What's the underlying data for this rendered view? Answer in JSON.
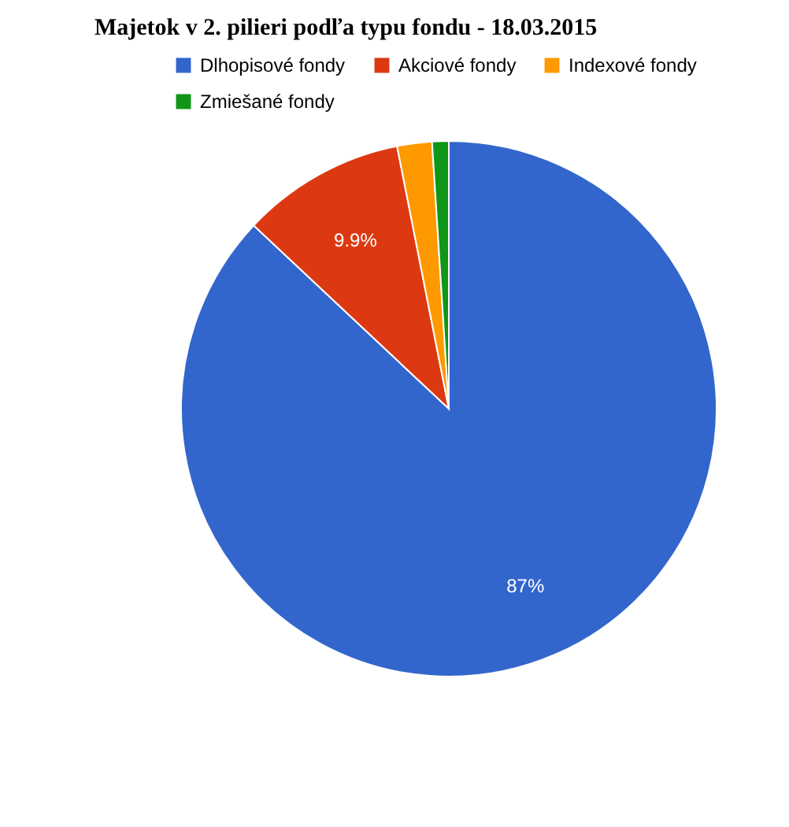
{
  "chart_data": {
    "type": "pie",
    "title": "Majetok v 2. pilieri podľa typu fondu - 18.03.2015",
    "categories": [
      "Dlhopisové fondy",
      "Akciové fondy",
      "Indexové fondy",
      "Zmiešané fondy"
    ],
    "values": [
      87,
      9.9,
      2.1,
      1.0
    ],
    "colors": [
      "#3366cc",
      "#dc3912",
      "#ff9900",
      "#109618"
    ],
    "value_labels": [
      "87%",
      "9.9%",
      null,
      null
    ],
    "legend": "top"
  }
}
